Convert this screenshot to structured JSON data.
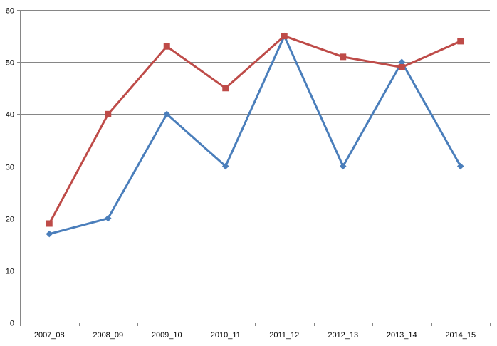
{
  "chart_data": {
    "type": "line",
    "title": "",
    "xlabel": "",
    "ylabel": "",
    "categories": [
      "2007_08",
      "2008_09",
      "2009_10",
      "2010_11",
      "2011_12",
      "2012_13",
      "2013_14",
      "2014_15"
    ],
    "ylim": [
      0,
      60
    ],
    "yticks": [
      0,
      10,
      20,
      30,
      40,
      50,
      60
    ],
    "grid": true,
    "legend": "none",
    "series": [
      {
        "color": "#4A7EBB",
        "marker": "diamond",
        "values": [
          17,
          20,
          40,
          30,
          55,
          30,
          50,
          30
        ]
      },
      {
        "color": "#BE4B48",
        "marker": "square",
        "values": [
          19,
          40,
          53,
          45,
          55,
          51,
          49,
          54
        ]
      }
    ]
  }
}
